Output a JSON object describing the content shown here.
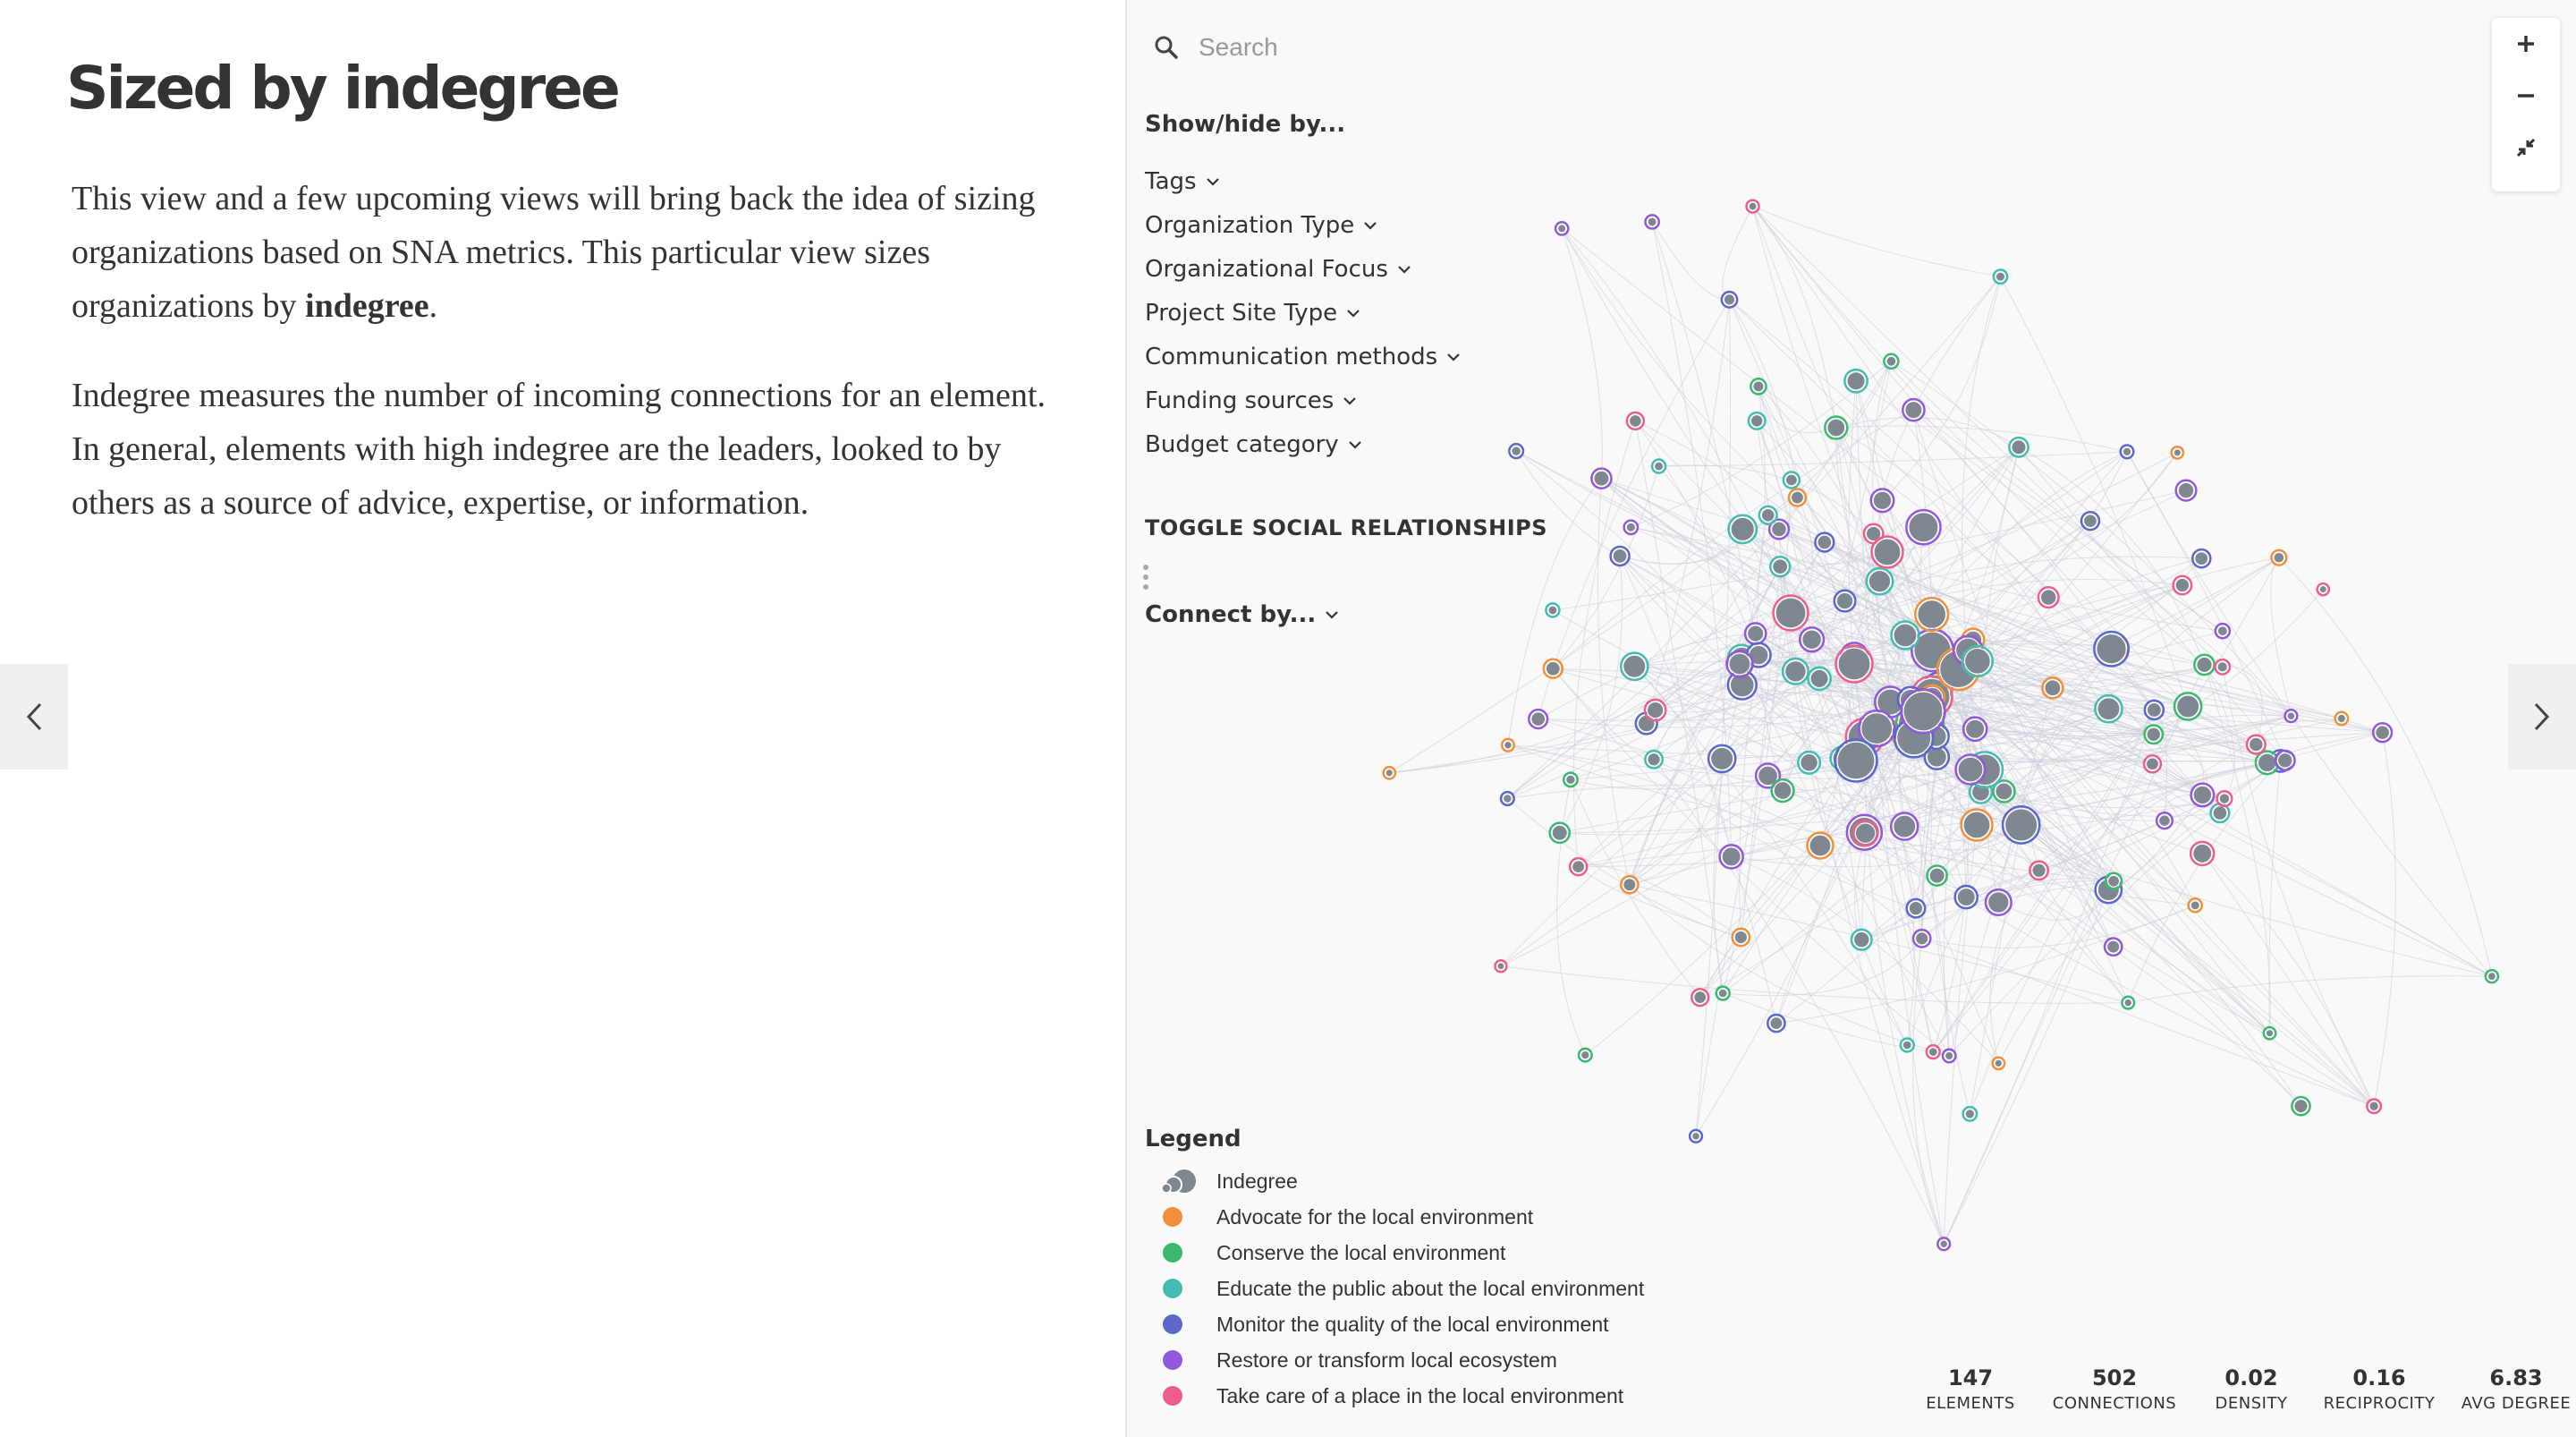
{
  "story": {
    "title": "Sized by indegree",
    "p1_pre": "This view and a few upcoming views will bring back the idea of sizing organizations based on SNA metrics. This particular view sizes organizations by ",
    "p1_bold": "indegree",
    "p1_post": ".",
    "p2": "Indegree measures the number of incoming connections for an element. In general, elements with high indegree are the leaders, looked to by others as a source of advice, expertise, or information."
  },
  "nav": {
    "prev_icon": "chevron-left-icon",
    "next_icon": "chevron-right-icon"
  },
  "map": {
    "search_placeholder": "Search",
    "showhide_label": "Show/hide by...",
    "filters": [
      "Tags",
      "Organization Type",
      "Organizational Focus",
      "Project Site Type",
      "Communication methods",
      "Funding sources",
      "Budget category"
    ],
    "toggle_label": "TOGGLE SOCIAL RELATIONSHIPS",
    "connect_label": "Connect by..."
  },
  "legend": {
    "title": "Legend",
    "size_label": "Indegree",
    "items": [
      {
        "label": "Advocate for the local environment",
        "color": "#f0913a"
      },
      {
        "label": "Conserve the local environment",
        "color": "#3cb96e"
      },
      {
        "label": "Educate the public about the local environment",
        "color": "#44bcb0"
      },
      {
        "label": "Monitor the quality of the local environment",
        "color": "#5b67c9"
      },
      {
        "label": "Restore or transform local ecosystem",
        "color": "#9358d8"
      },
      {
        "label": "Take care of a place in the local environment",
        "color": "#ec5e8c"
      }
    ]
  },
  "stats": [
    {
      "value": "147",
      "label": "ELEMENTS"
    },
    {
      "value": "502",
      "label": "CONNECTIONS"
    },
    {
      "value": "0.02",
      "label": "DENSITY"
    },
    {
      "value": "0.16",
      "label": "RECIPROCITY"
    },
    {
      "value": "6.83",
      "label": "AVG DEGREE"
    }
  ],
  "zoom": {
    "in_icon": "plus-icon",
    "out_icon": "minus-icon",
    "fit_icon": "collapse-icon"
  },
  "colors": {
    "node_fill": "#7f8890",
    "edge": "#c9ccd8",
    "map_bg": "#f9f9f9"
  }
}
